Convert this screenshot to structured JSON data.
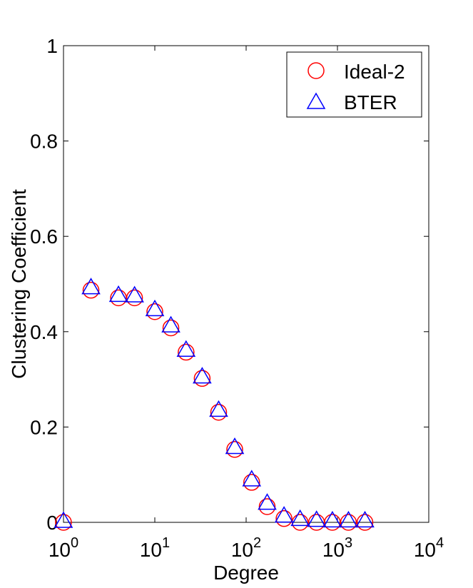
{
  "chart_data": {
    "type": "scatter",
    "title": "",
    "xlabel": "Degree",
    "ylabel": "Clustering Coefficient",
    "xscale": "log",
    "xlim": [
      1,
      10000
    ],
    "ylim": [
      0,
      1
    ],
    "x_ticks": [
      {
        "value": 1,
        "base": "10",
        "exp": "0"
      },
      {
        "value": 10,
        "base": "10",
        "exp": "1"
      },
      {
        "value": 100,
        "base": "10",
        "exp": "2"
      },
      {
        "value": 1000,
        "base": "10",
        "exp": "3"
      },
      {
        "value": 10000,
        "base": "10",
        "exp": "4"
      }
    ],
    "y_ticks": [
      {
        "value": 0,
        "label": "0"
      },
      {
        "value": 0.2,
        "label": "0.2"
      },
      {
        "value": 0.4,
        "label": "0.4"
      },
      {
        "value": 0.6,
        "label": "0.6"
      },
      {
        "value": 0.8,
        "label": "0.8"
      },
      {
        "value": 1,
        "label": "1"
      }
    ],
    "grid": false,
    "legend_position": "top-right",
    "series": [
      {
        "name": "Ideal-2",
        "marker": "circle",
        "color": "#ff0000",
        "x": [
          1,
          2,
          4,
          6,
          10,
          15,
          22,
          33,
          50,
          75,
          115,
          170,
          260,
          390,
          590,
          880,
          1320,
          2000
        ],
        "y": [
          0.0,
          0.487,
          0.471,
          0.471,
          0.442,
          0.408,
          0.357,
          0.302,
          0.231,
          0.153,
          0.084,
          0.033,
          0.008,
          0.0,
          0.0,
          0.0,
          0.0,
          0.0
        ]
      },
      {
        "name": "BTER",
        "marker": "triangle",
        "color": "#0000ff",
        "x": [
          1,
          2,
          4,
          6,
          10,
          15,
          22,
          33,
          50,
          75,
          115,
          170,
          260,
          390,
          590,
          880,
          1320,
          2000
        ],
        "y": [
          0.0,
          0.49,
          0.474,
          0.473,
          0.444,
          0.41,
          0.359,
          0.303,
          0.233,
          0.155,
          0.087,
          0.038,
          0.011,
          0.004,
          0.002,
          0.001,
          0.001,
          0.001
        ]
      }
    ]
  }
}
